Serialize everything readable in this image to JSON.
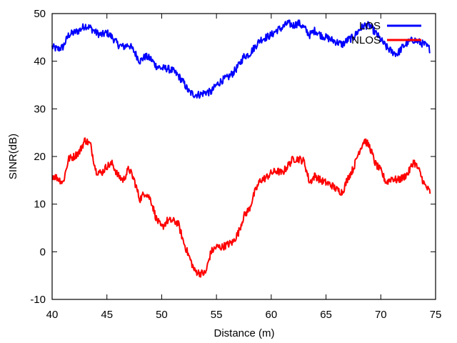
{
  "chart_data": {
    "type": "line",
    "title": "",
    "xlabel": "Distance (m)",
    "ylabel": "SINR(dB)",
    "xlim": [
      40,
      75
    ],
    "ylim": [
      -10,
      50
    ],
    "xticks": [
      40,
      45,
      50,
      55,
      60,
      65,
      70,
      75
    ],
    "yticks": [
      -10,
      0,
      10,
      20,
      30,
      40,
      50
    ],
    "xtick_labels": [
      "40",
      "45",
      "50",
      "55",
      "60",
      "65",
      "70",
      "75"
    ],
    "ytick_labels": [
      "-10",
      "0",
      "10",
      "20",
      "30",
      "40",
      "50"
    ],
    "x_end": 74.5,
    "grid": false,
    "legend_position": "top-right",
    "series": [
      {
        "name": "LOS",
        "color": "#0000ff",
        "x": [
          40,
          40.5,
          41,
          41.5,
          42,
          42.5,
          43,
          43.5,
          44,
          44.5,
          45,
          45.5,
          46,
          46.5,
          47,
          47.5,
          48,
          48.5,
          49,
          49.5,
          50,
          50.5,
          51,
          51.5,
          52,
          52.5,
          53,
          53.5,
          54,
          54.5,
          55,
          55.5,
          56,
          56.5,
          57,
          57.5,
          58,
          58.5,
          59,
          59.5,
          60,
          60.5,
          61,
          61.5,
          62,
          62.5,
          63,
          63.5,
          64,
          64.5,
          65,
          65.5,
          66,
          66.5,
          67,
          67.5,
          68,
          68.5,
          69,
          69.5,
          70,
          70.5,
          71,
          71.5,
          72,
          72.5,
          73,
          73.5,
          74,
          74.5
        ],
        "y": [
          43,
          42.5,
          43,
          45.5,
          46,
          46.5,
          47.5,
          47,
          46,
          45.5,
          46,
          45,
          43.5,
          43,
          43.5,
          42,
          40,
          41,
          40.5,
          39,
          38.5,
          38.5,
          38,
          37,
          35.5,
          33.5,
          33,
          33,
          33.5,
          33.5,
          35,
          36,
          36.5,
          37.5,
          39,
          41,
          41.5,
          43,
          44.5,
          45,
          45.5,
          46.5,
          47,
          48,
          47.5,
          48,
          47,
          45.5,
          46.5,
          45.5,
          45,
          44.5,
          44,
          43.5,
          44.5,
          45,
          46.5,
          47.5,
          47.5,
          46,
          44.5,
          43,
          42,
          41.5,
          43,
          44,
          44.5,
          44,
          43.5,
          42.5
        ]
      },
      {
        "name": "NLOS",
        "color": "#ff0000",
        "x": [
          40,
          40.5,
          41,
          41.5,
          42,
          42.5,
          43,
          43.5,
          44,
          44.5,
          45,
          45.5,
          46,
          46.5,
          47,
          47.5,
          48,
          48.5,
          49,
          49.5,
          50,
          50.5,
          51,
          51.5,
          52,
          52.5,
          53,
          53.5,
          54,
          54.5,
          55,
          55.5,
          56,
          56.5,
          57,
          57.5,
          58,
          58.5,
          59,
          59.5,
          60,
          60.5,
          61,
          61.5,
          62,
          62.5,
          63,
          63.5,
          64,
          64.5,
          65,
          65.5,
          66,
          66.5,
          67,
          67.5,
          68,
          68.5,
          69,
          69.5,
          70,
          70.5,
          71,
          71.5,
          72,
          72.5,
          73,
          73.5,
          74,
          74.5
        ],
        "y": [
          16,
          15.5,
          14.5,
          19.5,
          20,
          21,
          23.5,
          22.5,
          17,
          16.5,
          18,
          18.5,
          16,
          15,
          17.5,
          15,
          11,
          12.5,
          11,
          7,
          5,
          6.5,
          6.5,
          6,
          2,
          -1,
          -4,
          -4.5,
          -4.5,
          0,
          1,
          1,
          1.5,
          2,
          4,
          7.5,
          9,
          12.5,
          15,
          15.5,
          16.5,
          17,
          16.5,
          18,
          19.5,
          19.5,
          19,
          14.5,
          16,
          15,
          14.5,
          14,
          13,
          12.5,
          15.5,
          17.5,
          21,
          23.5,
          22,
          18.5,
          17,
          14.5,
          15.5,
          15,
          15.5,
          16.5,
          19,
          17,
          14,
          12.5
        ]
      }
    ]
  }
}
